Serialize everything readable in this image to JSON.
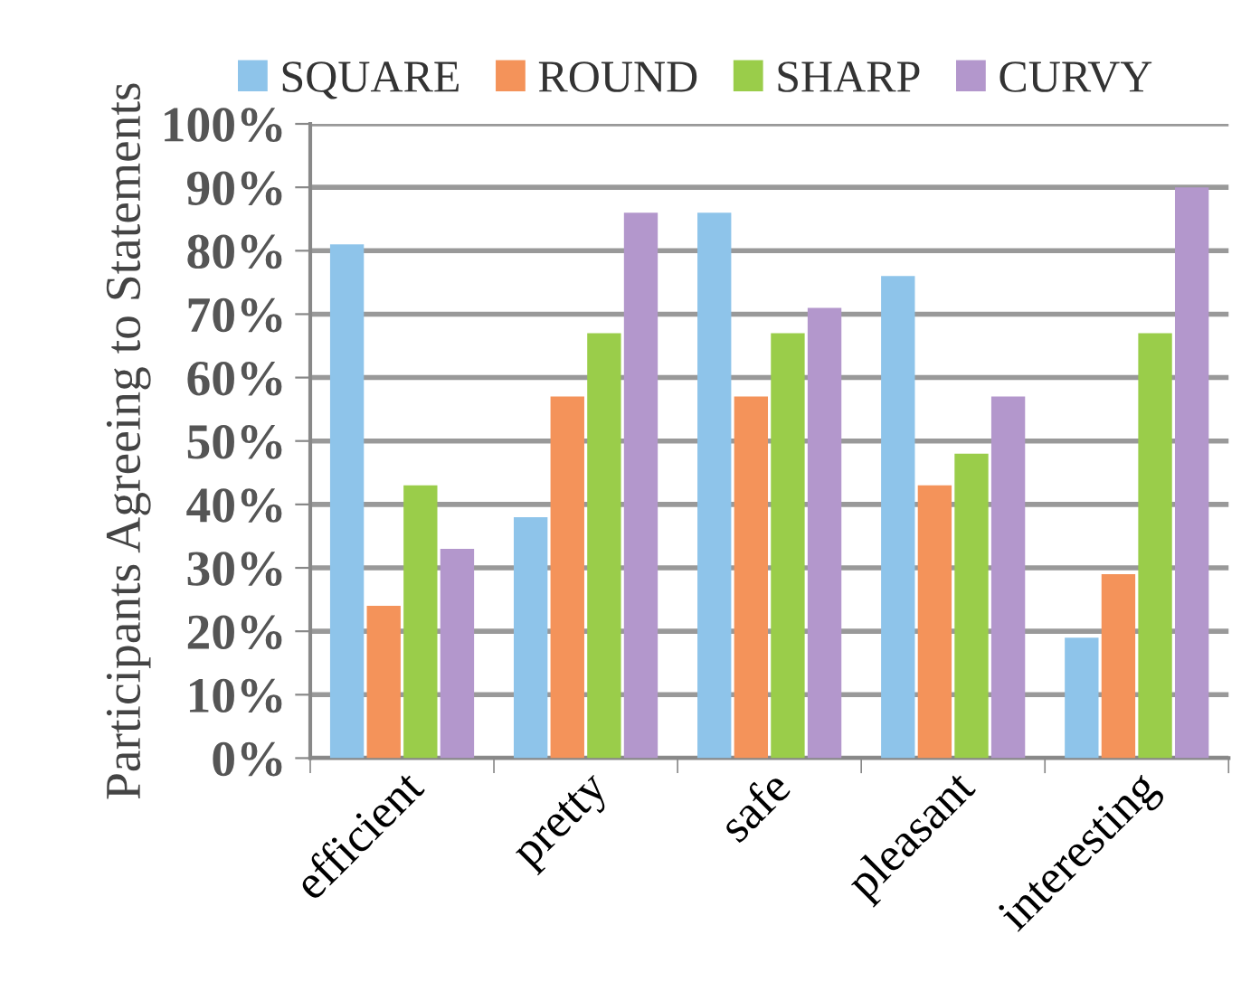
{
  "chart_data": {
    "type": "bar",
    "ylabel": "Participants Agreeing to Statements",
    "categories": [
      "efficient",
      "pretty",
      "safe",
      "pleasant",
      "interesting"
    ],
    "series": [
      {
        "name": "SQUARE",
        "color": "#8ec4ea",
        "values": [
          81,
          38,
          86,
          76,
          19
        ]
      },
      {
        "name": "ROUND",
        "color": "#f4935a",
        "values": [
          24,
          57,
          57,
          43,
          29
        ]
      },
      {
        "name": "SHARP",
        "color": "#9acd4a",
        "values": [
          43,
          67,
          67,
          48,
          67
        ]
      },
      {
        "name": "CURVY",
        "color": "#b397cc",
        "values": [
          33,
          86,
          71,
          57,
          90
        ]
      }
    ],
    "ylim": [
      0,
      100
    ],
    "yticks": [
      {
        "value": 0,
        "label": "0%"
      },
      {
        "value": 10,
        "label": "10%"
      },
      {
        "value": 20,
        "label": "20%"
      },
      {
        "value": 30,
        "label": "30%"
      },
      {
        "value": 40,
        "label": "40%"
      },
      {
        "value": 50,
        "label": "50%"
      },
      {
        "value": 60,
        "label": "60%"
      },
      {
        "value": 70,
        "label": "70%"
      },
      {
        "value": 80,
        "label": "80%"
      },
      {
        "value": 90,
        "label": "90%"
      },
      {
        "value": 100,
        "label": "100%"
      }
    ],
    "grid": "y",
    "legend": "top"
  }
}
